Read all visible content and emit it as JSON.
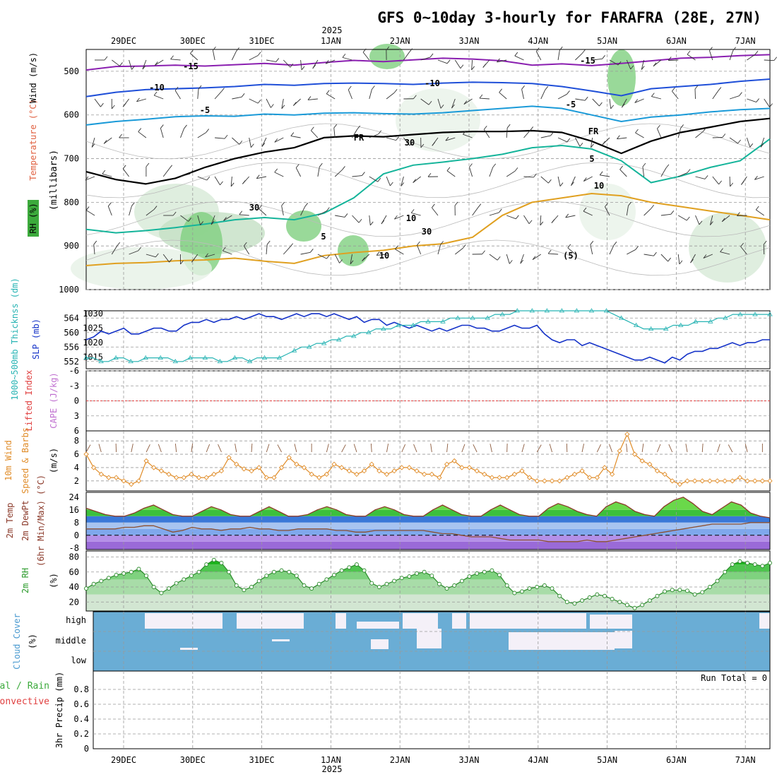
{
  "chart_data": {
    "type": "line",
    "title": "GFS 0~10day 3-hourly for FARAFRA (28E, 27N)",
    "year_label": "2025",
    "date_labels": [
      "29DEC",
      "30DEC",
      "31DEC",
      "1JAN",
      "2JAN",
      "3JAN",
      "4JAN",
      "5JAN",
      "6JAN",
      "7JAN"
    ],
    "colors": {
      "temp15": "#8a1fb0",
      "temp10": "#1f4fd8",
      "temp5n": "#1a9ad8",
      "fr": "#000000",
      "temp5": "#14b49a",
      "temp10p": "#e0a020",
      "temp15p": "#e07a10",
      "rh": "#3caa3c",
      "slp": "#1432c8",
      "thick": "#28b4b4",
      "wind": "#e08c28",
      "barb": "#8c5a3c",
      "dew": "#8c5032",
      "cloud": "#6aadd5",
      "cloudclear": "#f4f0f8",
      "li": "#e04040"
    },
    "upper_panel": {
      "ylabel_parts": [
        "RH (%)",
        "Temperature (°C)",
        "Wind (m/s)",
        "(millibars)"
      ],
      "pressure_ticks": [
        "500",
        "600",
        "700",
        "800",
        "900",
        "1000"
      ],
      "pressure_range": [
        450,
        1000
      ],
      "isotherm_labels": [
        "-15",
        "-15",
        "-10",
        "-10",
        "-5",
        "-5",
        "FR",
        "FR",
        "5",
        "5",
        "10",
        "10",
        "(5)",
        "30",
        "30",
        "10",
        "30"
      ],
      "isotherms": [
        {
          "name": "-15",
          "x": [
            0,
            10
          ],
          "p": [
            497,
            489,
            488,
            486,
            488,
            485,
            482,
            486,
            480,
            475,
            478,
            474,
            470,
            472,
            476,
            486,
            483,
            487,
            482,
            476,
            470,
            468,
            464,
            462
          ]
        },
        {
          "name": "-10",
          "x": [
            0,
            10
          ],
          "p": [
            558,
            548,
            542,
            540,
            538,
            535,
            530,
            532,
            528,
            527,
            528,
            530,
            527,
            525,
            526,
            528,
            535,
            545,
            556,
            540,
            535,
            530,
            523,
            518
          ]
        },
        {
          "name": "-5",
          "x": [
            0,
            10
          ],
          "p": [
            623,
            615,
            610,
            604,
            602,
            603,
            598,
            600,
            596,
            595,
            597,
            598,
            595,
            590,
            585,
            580,
            585,
            600,
            615,
            605,
            600,
            593,
            588,
            585
          ]
        },
        {
          "name": "FR",
          "x": [
            0,
            10
          ],
          "p": [
            730,
            748,
            758,
            745,
            720,
            700,
            685,
            675,
            652,
            648,
            650,
            645,
            640,
            638,
            638,
            636,
            640,
            660,
            688,
            660,
            640,
            628,
            615,
            608
          ]
        },
        {
          "name": "5",
          "x": [
            0,
            10
          ],
          "p": [
            862,
            870,
            865,
            858,
            850,
            840,
            835,
            840,
            825,
            790,
            735,
            715,
            708,
            700,
            690,
            675,
            670,
            678,
            705,
            755,
            740,
            720,
            705,
            655
          ]
        },
        {
          "name": "10",
          "x": [
            0,
            10
          ],
          "p": [
            945,
            940,
            938,
            934,
            932,
            928,
            935,
            940,
            922,
            915,
            910,
            900,
            895,
            880,
            830,
            800,
            790,
            780,
            785,
            800,
            810,
            820,
            830,
            840
          ]
        }
      ]
    },
    "slp_panel": {
      "left_ticks": [
        "564",
        "560",
        "556",
        "552"
      ],
      "left_range": [
        550,
        566
      ],
      "right_ticks": [
        "1030",
        "1025",
        "1020",
        "1015"
      ],
      "right_range": [
        1011,
        1031
      ],
      "ylabel_left": "1000~500mb Thicknss (dm)",
      "ylabel_right": "SLP (mb)",
      "slp": [
        1021,
        1022,
        1024,
        1023,
        1024,
        1025,
        1023,
        1023,
        1024,
        1025,
        1025,
        1024,
        1024,
        1026,
        1027,
        1027,
        1028,
        1027,
        1028,
        1028,
        1029,
        1028,
        1029,
        1030,
        1029,
        1029,
        1028,
        1029,
        1030,
        1029,
        1030,
        1030,
        1029,
        1030,
        1029,
        1028,
        1029,
        1027,
        1028,
        1028,
        1026,
        1027,
        1026,
        1025,
        1026,
        1025,
        1024,
        1025,
        1024,
        1025,
        1026,
        1026,
        1025,
        1025,
        1024,
        1024,
        1025,
        1026,
        1025,
        1025,
        1026,
        1023,
        1021,
        1020,
        1021,
        1021,
        1019,
        1020,
        1019,
        1018,
        1017,
        1016,
        1015,
        1014,
        1014,
        1015,
        1014,
        1013,
        1015,
        1014,
        1016,
        1017,
        1017,
        1018,
        1018,
        1019,
        1020,
        1019,
        1020,
        1020,
        1021,
        1021
      ],
      "thickness": [
        553,
        553,
        552,
        552,
        553,
        553,
        552,
        552,
        553,
        553,
        553,
        553,
        552,
        552,
        553,
        553,
        553,
        553,
        552,
        552,
        553,
        553,
        552,
        553,
        553,
        553,
        553,
        554,
        555,
        556,
        556,
        557,
        557,
        558,
        558,
        559,
        559,
        560,
        560,
        561,
        561,
        561,
        562,
        562,
        562,
        563,
        563,
        563,
        563,
        564,
        564,
        564,
        564,
        564,
        564,
        565,
        565,
        565,
        566,
        566,
        566,
        566,
        566,
        566,
        566,
        566,
        566,
        566,
        566,
        566,
        566,
        565,
        564,
        563,
        562,
        561,
        561,
        561,
        561,
        562,
        562,
        562,
        563,
        563,
        563,
        564,
        564,
        565,
        565,
        565,
        565,
        565,
        565
      ]
    },
    "li_panel": {
      "left_ticks": [
        "-6",
        "-3",
        "0",
        "3",
        "6"
      ],
      "li_range": [
        -6,
        6
      ],
      "ylabel": "Lifted Index",
      "ylabel2": "CAPE (J/kg)"
    },
    "wind_panel": {
      "ticks": [
        "8",
        "6",
        "4",
        "2"
      ],
      "range": [
        0.5,
        9.5
      ],
      "ylabel": "10m Wind",
      "ylabel2": "Speed & Barbs",
      "units": "(m/s)",
      "speed": [
        6.0,
        4.0,
        3.0,
        2.5,
        2.5,
        2.0,
        1.5,
        2.0,
        5.0,
        4.0,
        3.5,
        3.0,
        2.5,
        2.5,
        3.0,
        2.5,
        2.5,
        3.0,
        3.5,
        5.5,
        4.5,
        3.8,
        3.5,
        4.0,
        2.5,
        2.5,
        4.0,
        5.5,
        4.5,
        4.0,
        3.0,
        2.5,
        3.0,
        4.5,
        4.0,
        3.5,
        3.0,
        3.5,
        4.5,
        3.5,
        3.0,
        3.5,
        4.0,
        4.0,
        3.5,
        3.0,
        3.0,
        2.5,
        4.5,
        5.0,
        4.0,
        4.0,
        3.5,
        3.0,
        2.5,
        2.5,
        2.5,
        3.0,
        3.5,
        2.5,
        2.0,
        2.0,
        2.0,
        2.0,
        2.5,
        3.0,
        3.5,
        2.5,
        2.5,
        4.0,
        3.0,
        6.5,
        9.0,
        6.0,
        5.0,
        4.5,
        3.5,
        3.0,
        2.0,
        1.5,
        2.0,
        2.0,
        2.0,
        2.0,
        2.0,
        2.0,
        2.0,
        2.5,
        2.0,
        2.0,
        2.0,
        2.0
      ]
    },
    "temp_panel": {
      "ticks": [
        "24",
        "16",
        "8",
        "0",
        "-8"
      ],
      "range": [
        -9,
        27
      ],
      "ylabel": "2m Temp",
      "ylabel2": "2m DewPt",
      "ylabel3": "(6hr Min/Max) (°C)",
      "temp": [
        17,
        15,
        13,
        12,
        12,
        14,
        17,
        19,
        16,
        13,
        12,
        12,
        15,
        18,
        16,
        13,
        12,
        12,
        15,
        18,
        15,
        12,
        12,
        13,
        16,
        18,
        16,
        13,
        12,
        12,
        16,
        18,
        16,
        13,
        12,
        12,
        16,
        19,
        16,
        13,
        12,
        12,
        16,
        19,
        16,
        13,
        12,
        12,
        17,
        20,
        18,
        15,
        13,
        12,
        18,
        21,
        19,
        15,
        13,
        12,
        18,
        22,
        24,
        20,
        15,
        13,
        17,
        21,
        19,
        14,
        12,
        11
      ],
      "dew": [
        4,
        4,
        4,
        4,
        5,
        5,
        6,
        6,
        4,
        2,
        3,
        5,
        4,
        4,
        3,
        4,
        4,
        5,
        4,
        4,
        3,
        3,
        4,
        4,
        4,
        4,
        3,
        3,
        2,
        2,
        3,
        3,
        3,
        3,
        3,
        3,
        2,
        1,
        1,
        0,
        -1,
        -1,
        -1,
        -2,
        -3,
        -3,
        -3,
        -3,
        -4,
        -4,
        -4,
        -4,
        -3,
        -4,
        -4,
        -3,
        -2,
        -1,
        0,
        1,
        2,
        3,
        4,
        5,
        6,
        7,
        7,
        7,
        7,
        8,
        8,
        8
      ]
    },
    "rh_panel": {
      "ticks": [
        "80",
        "60",
        "40",
        "20"
      ],
      "range": [
        8,
        88
      ],
      "ylabel": "2m RH",
      "units": "(%)",
      "rh": [
        38,
        44,
        48,
        52,
        56,
        58,
        60,
        64,
        55,
        40,
        32,
        38,
        45,
        50,
        55,
        60,
        70,
        76,
        72,
        60,
        42,
        36,
        40,
        48,
        55,
        60,
        62,
        60,
        55,
        42,
        38,
        44,
        50,
        56,
        62,
        66,
        70,
        62,
        45,
        40,
        44,
        48,
        52,
        54,
        58,
        60,
        55,
        44,
        38,
        42,
        48,
        54,
        58,
        60,
        62,
        56,
        42,
        32,
        34,
        38,
        40,
        42,
        38,
        28,
        20,
        18,
        22,
        26,
        30,
        28,
        24,
        20,
        16,
        12,
        16,
        22,
        28,
        34,
        36,
        36,
        35,
        30,
        33,
        40,
        48,
        60,
        70,
        74,
        72,
        70,
        68,
        72
      ]
    },
    "cloud_panel": {
      "labels": [
        "high",
        "middle",
        "low"
      ],
      "ylabel": "Cloud Cover",
      "units": "(%)"
    },
    "precip_panel": {
      "ticks": [
        "0.8",
        "0.6",
        "0.4",
        "0.2",
        "0"
      ],
      "range": [
        0,
        1
      ],
      "ylabel": "Total / Rain",
      "ylabel2": "Convective",
      "ylabel3": "3hr Precip (mm)",
      "run_total": "Run Total = 0",
      "values": [
        0,
        0,
        0,
        0,
        0,
        0,
        0,
        0,
        0,
        0
      ]
    }
  }
}
